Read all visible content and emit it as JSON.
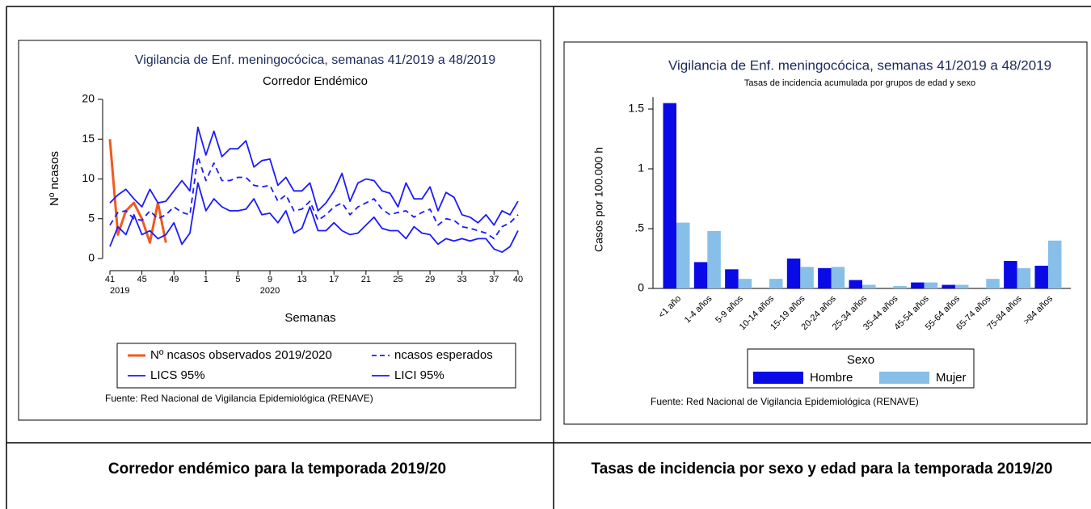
{
  "chart_data": [
    {
      "type": "line",
      "title": "Vigilancia de Enf. meningocócica, semanas 41/2019 a 48/2019",
      "subtitle": "Corredor Endémico",
      "y_label": "Nº ncasos",
      "x_label": "Semanas",
      "source": "Fuente: Red Nacional de Vigilancia Epidemiológica (RENAVE)",
      "categories": [
        "41",
        null,
        null,
        null,
        "45",
        null,
        null,
        null,
        "49",
        null,
        null,
        null,
        "1",
        null,
        null,
        null,
        "5",
        null,
        null,
        null,
        "9",
        null,
        null,
        null,
        "13",
        null,
        null,
        null,
        "17",
        null,
        null,
        null,
        "21",
        null,
        null,
        null,
        "25",
        null,
        null,
        null,
        "29",
        null,
        null,
        null,
        "33",
        null,
        null,
        null,
        "37",
        null,
        null,
        "40"
      ],
      "category_years": [
        "2019",
        null,
        null,
        null,
        null,
        null,
        null,
        null,
        null,
        null,
        null,
        null,
        null,
        null,
        null,
        null,
        null,
        null,
        null,
        null,
        "2020",
        null,
        null,
        null,
        null,
        null,
        null,
        null,
        null,
        null,
        null,
        null,
        null,
        null,
        null,
        null,
        null,
        null,
        null,
        null,
        null,
        null,
        null,
        null,
        null,
        null,
        null,
        null,
        null,
        null,
        null,
        null
      ],
      "ylim": [
        0,
        20
      ],
      "yticks": [
        0,
        5,
        10,
        15,
        20
      ],
      "legend": "bottom",
      "series": [
        {
          "name": "Nº ncasos observados 2019/2020",
          "color": "#f05a1e",
          "style": "solid",
          "values": [
            15,
            3,
            6,
            7,
            5,
            2,
            7,
            2,
            null,
            null,
            null,
            null,
            null,
            null,
            null,
            null,
            null,
            null,
            null,
            null,
            null,
            null,
            null,
            null,
            null,
            null,
            null,
            null,
            null,
            null,
            null,
            null,
            null,
            null,
            null,
            null,
            null,
            null,
            null,
            null,
            null,
            null,
            null,
            null,
            null,
            null,
            null,
            null,
            null,
            null,
            null,
            null
          ]
        },
        {
          "name": "ncasos esperados",
          "color": "#1a1aff",
          "style": "dashed",
          "values": [
            4.2,
            5.8,
            6,
            5,
            4.8,
            6,
            5,
            5.5,
            6.5,
            5.8,
            5.5,
            12.8,
            9.8,
            12,
            9.8,
            9.8,
            10.2,
            10.2,
            9.2,
            9,
            9.2,
            7.2,
            8,
            6,
            6.2,
            7.2,
            4.8,
            5.5,
            6.5,
            7,
            5.5,
            6.5,
            7,
            7.5,
            6.2,
            5.5,
            5.8,
            6,
            5.2,
            5.8,
            6.2,
            4.2,
            5,
            4.8,
            4,
            3.8,
            3.5,
            3.2,
            2.5,
            4,
            4.5,
            5.5
          ]
        },
        {
          "name": "LICS 95%",
          "color": "#1a1aff",
          "style": "solid",
          "values": [
            7,
            8,
            8.7,
            7.5,
            6.5,
            8.7,
            7,
            7.2,
            8.5,
            9.8,
            8.5,
            16.5,
            13,
            16,
            12.8,
            13.8,
            13.8,
            14.8,
            11.5,
            12.3,
            12.5,
            9.2,
            10.2,
            8.5,
            8.5,
            9.5,
            6,
            7,
            8.5,
            10.7,
            7.2,
            9.5,
            10,
            9.8,
            8.5,
            8.2,
            6.5,
            9.5,
            7.5,
            7.5,
            9,
            6,
            8.3,
            7.7,
            5.5,
            5.2,
            4.5,
            5.5,
            4.2,
            6,
            5.5,
            7.2
          ]
        },
        {
          "name": "LICI 95%",
          "color": "#1a1aff",
          "style": "solid",
          "values": [
            1.5,
            4,
            3,
            5.5,
            3,
            3.5,
            2.5,
            3,
            4.5,
            1.8,
            3.2,
            9.5,
            6,
            7.5,
            6.5,
            6,
            6,
            6.2,
            7.5,
            5.5,
            5.7,
            4.5,
            6,
            3.2,
            3.8,
            6.5,
            3.5,
            3.5,
            4.5,
            3.5,
            3,
            3.2,
            4.2,
            5.2,
            3.8,
            3.5,
            3.5,
            2.5,
            4,
            3.2,
            3,
            1.8,
            2.5,
            2.2,
            2.5,
            2.2,
            2.5,
            2.5,
            1.2,
            0.8,
            1.5,
            3.5
          ]
        }
      ]
    },
    {
      "type": "bar",
      "title": "Vigilancia de Enf. meningocócica, semanas 41/2019 a 48/2019",
      "subtitle": "Tasas de incidencia acumulada por grupos de edad y sexo",
      "y_label": "Casos por 100.000 h",
      "source": "Fuente: Red Nacional de Vigilancia Epidemiológica (RENAVE)",
      "legend_title": "Sexo",
      "legend": "bottom",
      "categories": [
        "<1 año",
        "1-4 años",
        "5-9 años",
        "10-14 años",
        "15-19 años",
        "20-24 años",
        "25-34 años",
        "35-44 años",
        "45-54 años",
        "55-64 años",
        "65-74 años",
        "75-84 años",
        ">84 años"
      ],
      "ylim": [
        0,
        1.6
      ],
      "yticks": [
        0,
        {
          "value": 0.5,
          "label": ".5"
        },
        1,
        1.5
      ],
      "series": [
        {
          "name": "Hombre",
          "color": "#0a0ae6",
          "values": [
            1.55,
            0.22,
            0.16,
            0,
            0.25,
            0.17,
            0.07,
            0,
            0.05,
            0.03,
            0,
            0.23,
            0.19
          ]
        },
        {
          "name": "Mujer",
          "color": "#87bfe8",
          "values": [
            0.55,
            0.48,
            0.08,
            0.08,
            0.18,
            0.18,
            0.03,
            0.02,
            0.05,
            0.03,
            0.08,
            0.17,
            0.4
          ]
        }
      ]
    }
  ],
  "captions": [
    "Corredor endémico para la temporada 2019/20",
    "Tasas de incidencia por sexo y edad para la temporada 2019/20"
  ]
}
